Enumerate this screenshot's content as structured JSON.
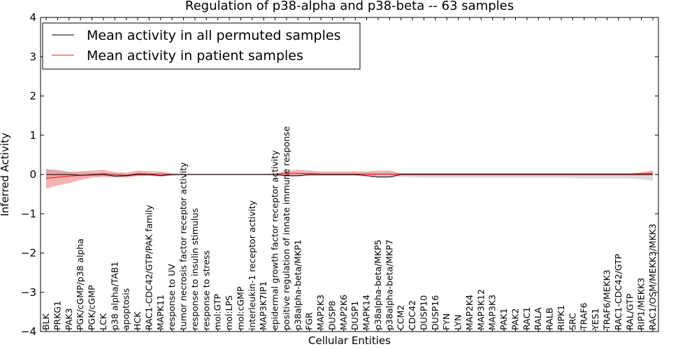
{
  "chart_data": {
    "type": "line",
    "title": "Regulation of p38-alpha and p38-beta -- 63 samples",
    "xlabel": "Cellular Entities",
    "ylabel": "Inferred Activity",
    "ylim": [
      -4,
      4
    ],
    "yticks": [
      -4,
      -3,
      -2,
      -1,
      0,
      1,
      2,
      3,
      4
    ],
    "ytick_labels": [
      "−4",
      "−3",
      "−2",
      "−1",
      "0",
      "1",
      "2",
      "3",
      "4"
    ],
    "grid": false,
    "legend_position": "top-left",
    "legend": [
      {
        "label": "Mean activity in all permuted samples",
        "color": "#000000"
      },
      {
        "label": "Mean activity in patient samples",
        "color": "#e31a1c"
      }
    ],
    "band_colors": {
      "permuted": "#bbbbbb",
      "patient": "#f08080"
    },
    "categories": [
      "BLK",
      "PRKG1",
      "PAK3",
      "PGK/cGMP/p38 alpha",
      "PGK/cGMP",
      "LCK",
      "p38 alpha/TAB1",
      "apoptosis",
      "HCK",
      "RAC1-CDC42/GTP/PAK family",
      "MAPK11",
      "response to UV",
      "tumor necrosis factor receptor activity",
      "response to insulin stimulus",
      "response to stress",
      "mol:GTP",
      "mol:LPS",
      "mol:cGMP",
      "interleukin-1 receptor activity",
      "MAP3K7IP1",
      "epidermal growth factor receptor activity",
      "positive regulation of innate immune response",
      "p38alpha-beta/MKP1",
      "FGR",
      "MAP2K3",
      "DUSP8",
      "MAP2K6",
      "DUSP1",
      "MAPK14",
      "p38alpha-beta/MKP5",
      "p38alpha-beta/MKP7",
      "CCM2",
      "CDC42",
      "DUSP10",
      "DUSP16",
      "FYN",
      "LYN",
      "MAP2K4",
      "MAP3K12",
      "MAP3K3",
      "PAK1",
      "PAK2",
      "RAC1",
      "RALA",
      "RALB",
      "RIPK1",
      "SRC",
      "TRAF6",
      "YES1",
      "TRAF6/MEKK3",
      "RAC1-CDC42/GTP",
      "RAL/GTP",
      "RIP1/MEKK3",
      "RAC1/OSM/MEKK3/MKK3"
    ],
    "series": [
      {
        "name": "Mean activity in all permuted samples",
        "values": [
          0,
          0,
          0,
          -0.02,
          -0.01,
          0,
          -0.04,
          -0.03,
          0,
          0,
          -0.03,
          0,
          0,
          0,
          0,
          0,
          0,
          0,
          0,
          0,
          0,
          -0.03,
          -0.03,
          0,
          0,
          0,
          0,
          0,
          -0.03,
          -0.06,
          -0.06,
          0,
          0,
          0,
          0,
          0,
          0,
          0,
          0,
          0,
          0,
          0,
          0,
          0,
          0,
          0,
          0,
          0,
          0,
          0,
          0,
          0,
          0,
          0
        ],
        "lower": [
          -0.12,
          -0.1,
          -0.08,
          -0.06,
          -0.04,
          -0.04,
          -0.08,
          -0.06,
          -0.04,
          -0.04,
          -0.06,
          -0.04,
          -0.02,
          -0.02,
          -0.02,
          -0.02,
          -0.02,
          -0.02,
          -0.02,
          -0.02,
          -0.02,
          -0.06,
          -0.06,
          -0.04,
          -0.04,
          -0.04,
          -0.04,
          -0.04,
          -0.06,
          -0.09,
          -0.09,
          -0.06,
          -0.07,
          -0.08,
          -0.08,
          -0.08,
          -0.08,
          -0.08,
          -0.08,
          -0.08,
          -0.08,
          -0.08,
          -0.08,
          -0.08,
          -0.08,
          -0.08,
          -0.09,
          -0.1,
          -0.1,
          -0.1,
          -0.1,
          -0.1,
          -0.12,
          -0.16
        ],
        "upper": [
          0.14,
          0.12,
          0.08,
          0.06,
          0.04,
          0.04,
          0.02,
          0.02,
          0.04,
          0.04,
          0.03,
          0.03,
          0.02,
          0.02,
          0.02,
          0.02,
          0.02,
          0.02,
          0.02,
          0.02,
          0.03,
          0.04,
          0.04,
          0.04,
          0.04,
          0.04,
          0.04,
          0.04,
          0.04,
          0.04,
          0.04,
          0.04,
          0.04,
          0.04,
          0.04,
          0.04,
          0.04,
          0.04,
          0.04,
          0.04,
          0.04,
          0.04,
          0.04,
          0.04,
          0.04,
          0.04,
          0.04,
          0.04,
          0.04,
          0.04,
          0.04,
          0.04,
          0.05,
          0.08
        ]
      },
      {
        "name": "Mean activity in patient samples",
        "values": [
          -0.1,
          -0.07,
          -0.04,
          -0.02,
          0,
          0.02,
          0,
          -0.02,
          0.02,
          0.01,
          0.01,
          0,
          0,
          0,
          0,
          0,
          0,
          0,
          0,
          0,
          0,
          0.03,
          0.03,
          0.02,
          0.01,
          0.01,
          0.01,
          0.01,
          0.01,
          0.01,
          0.01,
          0.01,
          0.01,
          0.01,
          0.01,
          0.01,
          0.01,
          0.01,
          0.01,
          0.01,
          0.01,
          0.01,
          0.01,
          0.01,
          0.01,
          0.01,
          0.01,
          0.01,
          0.01,
          0.01,
          0.01,
          0.01,
          0.02,
          0.02
        ],
        "lower": [
          -0.36,
          -0.28,
          -0.22,
          -0.14,
          -0.08,
          -0.06,
          -0.06,
          -0.08,
          -0.04,
          -0.03,
          -0.03,
          -0.02,
          -0.01,
          -0.01,
          -0.01,
          -0.01,
          -0.01,
          -0.01,
          -0.01,
          -0.01,
          -0.01,
          -0.02,
          -0.02,
          -0.02,
          -0.02,
          -0.02,
          -0.02,
          -0.02,
          -0.02,
          -0.02,
          -0.02,
          -0.02,
          -0.02,
          -0.02,
          -0.02,
          -0.02,
          -0.02,
          -0.02,
          -0.02,
          -0.02,
          -0.02,
          -0.02,
          -0.02,
          -0.02,
          -0.02,
          -0.02,
          -0.02,
          -0.02,
          -0.02,
          -0.02,
          -0.02,
          -0.02,
          -0.02,
          -0.02
        ],
        "upper": [
          0.14,
          0.1,
          0.06,
          0.08,
          0.1,
          0.12,
          0.06,
          0.05,
          0.1,
          0.08,
          0.08,
          0.03,
          0.02,
          0.02,
          0.02,
          0.02,
          0.02,
          0.02,
          0.02,
          0.02,
          0.02,
          0.1,
          0.12,
          0.1,
          0.08,
          0.08,
          0.08,
          0.08,
          0.08,
          0.1,
          0.1,
          0.03,
          0.03,
          0.03,
          0.03,
          0.03,
          0.03,
          0.03,
          0.03,
          0.03,
          0.03,
          0.03,
          0.03,
          0.03,
          0.03,
          0.03,
          0.03,
          0.03,
          0.03,
          0.03,
          0.03,
          0.03,
          0.06,
          0.1
        ]
      }
    ]
  }
}
